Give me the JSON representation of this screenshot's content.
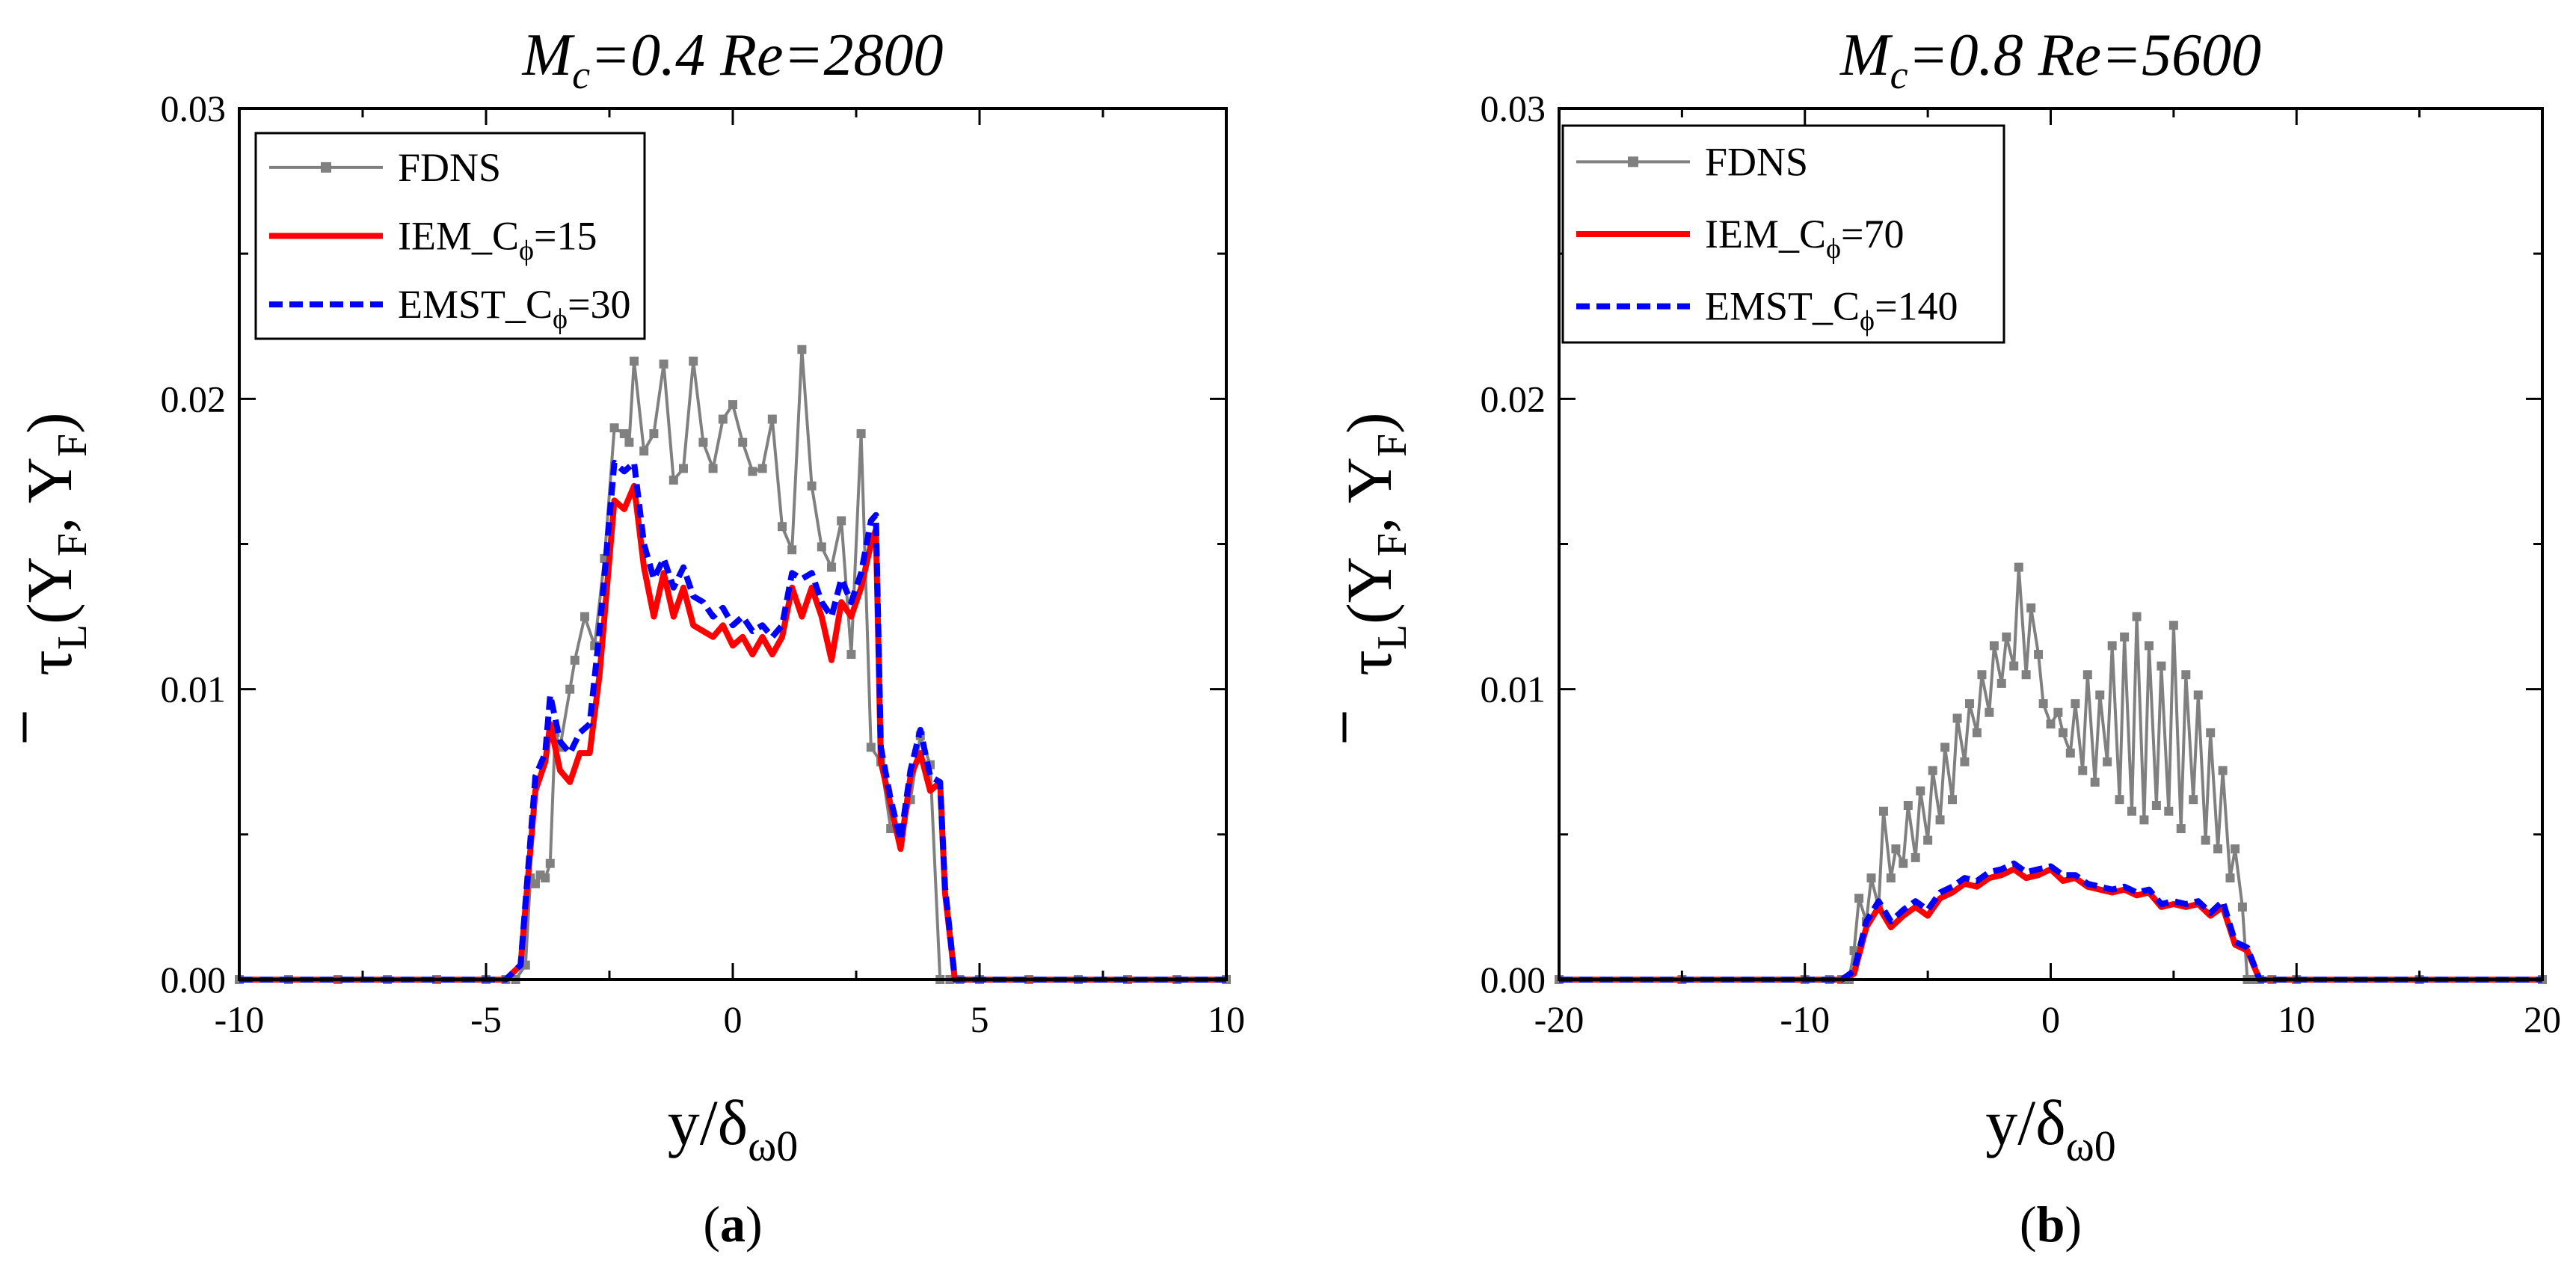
{
  "colors": {
    "FDNS": "#808080",
    "IEM": "#ff0000",
    "EMST": "#0000ff",
    "axis": "#000000",
    "background": "#ffffff"
  },
  "chart_data": [
    {
      "type": "line",
      "panel_label_parts": [
        "(",
        "a",
        ")"
      ],
      "title_parts": {
        "M": "M",
        "sub": "c",
        "mid": "=0.4  ",
        "Re": "Re",
        "rest": "=2800"
      },
      "xlabel_parts": {
        "pre": "y/",
        "delta": "δ",
        "sub": "ω0"
      },
      "ylabel_parts": {
        "tau": "τ",
        "tau_sub": "L",
        "open": "(Y",
        "sub1": "F",
        "comma": ", Y",
        "sub2": "F",
        "close": ")"
      },
      "xlim": [
        -10,
        10
      ],
      "ylim": [
        0,
        0.03
      ],
      "xticks": [
        -10,
        -5,
        0,
        5,
        10
      ],
      "xtick_labels": [
        "-10",
        "-5",
        "0",
        "5",
        "10"
      ],
      "yticks": [
        0,
        0.01,
        0.02,
        0.03
      ],
      "ytick_labels": [
        "0.00",
        "0.01",
        "0.02",
        "0.03"
      ],
      "legend": {
        "position": "top-left",
        "entries": [
          {
            "key": "FDNS",
            "parts": [
              "FDNS"
            ]
          },
          {
            "key": "IEM",
            "parts": [
              "IEM_C",
              "ϕ",
              "=15"
            ]
          },
          {
            "key": "EMST",
            "parts": [
              "EMST_C",
              "ϕ",
              "=30"
            ]
          }
        ]
      },
      "series": [
        {
          "name": "FDNS",
          "style": "solid-square-markers",
          "x": [
            -10.0,
            -9.0,
            -8.0,
            -7.0,
            -6.0,
            -5.0,
            -4.6,
            -4.4,
            -4.2,
            -4.1,
            -4.0,
            -3.9,
            -3.8,
            -3.7,
            -3.6,
            -3.5,
            -3.3,
            -3.2,
            -3.0,
            -2.8,
            -2.6,
            -2.4,
            -2.2,
            -2.1,
            -2.0,
            -1.8,
            -1.6,
            -1.4,
            -1.2,
            -1.0,
            -0.8,
            -0.6,
            -0.4,
            -0.2,
            0.0,
            0.2,
            0.4,
            0.6,
            0.8,
            1.0,
            1.2,
            1.4,
            1.6,
            1.8,
            2.0,
            2.2,
            2.4,
            2.6,
            2.8,
            3.0,
            3.2,
            3.4,
            3.6,
            3.8,
            4.0,
            4.2,
            4.4,
            4.6,
            5.0,
            6.0,
            7.0,
            8.0,
            9.0,
            10.0
          ],
          "values": [
            0.0,
            0.0,
            0.0,
            0.0,
            0.0,
            0.0,
            0.0,
            0.0,
            0.0005,
            0.0035,
            0.0033,
            0.0036,
            0.0035,
            0.004,
            0.0085,
            0.008,
            0.01,
            0.011,
            0.0125,
            0.0115,
            0.0145,
            0.019,
            0.0188,
            0.0185,
            0.0213,
            0.0182,
            0.0188,
            0.0212,
            0.0172,
            0.0176,
            0.0213,
            0.0185,
            0.0176,
            0.0193,
            0.0198,
            0.0185,
            0.0175,
            0.0176,
            0.0193,
            0.0156,
            0.0148,
            0.0217,
            0.017,
            0.0149,
            0.0142,
            0.0158,
            0.0112,
            0.0188,
            0.008,
            0.0075,
            0.0052,
            0.0049,
            0.0062,
            0.0084,
            0.0074,
            0.0,
            0.0,
            0.0,
            0.0,
            0.0,
            0.0,
            0.0,
            0.0,
            0.0
          ]
        },
        {
          "name": "IEM",
          "style": "solid",
          "x": [
            -10.0,
            -8.0,
            -6.0,
            -4.6,
            -4.3,
            -4.0,
            -3.8,
            -3.7,
            -3.5,
            -3.3,
            -3.1,
            -2.9,
            -2.7,
            -2.4,
            -2.2,
            -2.0,
            -1.8,
            -1.6,
            -1.4,
            -1.2,
            -1.0,
            -0.8,
            -0.6,
            -0.4,
            -0.2,
            0.0,
            0.2,
            0.4,
            0.6,
            0.8,
            1.0,
            1.2,
            1.4,
            1.6,
            1.8,
            2.0,
            2.2,
            2.4,
            2.6,
            2.8,
            2.9,
            3.0,
            3.2,
            3.4,
            3.6,
            3.8,
            4.0,
            4.2,
            4.3,
            4.5,
            5.0,
            6.0,
            8.0,
            10.0
          ],
          "values": [
            0.0,
            0.0,
            0.0,
            0.0,
            0.0005,
            0.0065,
            0.0075,
            0.0088,
            0.0072,
            0.0068,
            0.0078,
            0.0078,
            0.0105,
            0.0165,
            0.0162,
            0.017,
            0.0142,
            0.0125,
            0.014,
            0.0125,
            0.0135,
            0.0122,
            0.012,
            0.0118,
            0.0122,
            0.0115,
            0.0118,
            0.0112,
            0.0118,
            0.0112,
            0.0118,
            0.0135,
            0.0125,
            0.0135,
            0.0125,
            0.011,
            0.013,
            0.0125,
            0.0135,
            0.015,
            0.0155,
            0.0075,
            0.006,
            0.0045,
            0.007,
            0.0078,
            0.0065,
            0.0068,
            0.003,
            0.0,
            0.0,
            0.0,
            0.0,
            0.0
          ]
        },
        {
          "name": "EMST",
          "style": "dashed",
          "x": [
            -10.0,
            -8.0,
            -6.0,
            -4.6,
            -4.3,
            -4.0,
            -3.8,
            -3.7,
            -3.5,
            -3.3,
            -3.1,
            -2.9,
            -2.7,
            -2.4,
            -2.2,
            -2.0,
            -1.8,
            -1.6,
            -1.4,
            -1.2,
            -1.0,
            -0.8,
            -0.6,
            -0.4,
            -0.2,
            0.0,
            0.2,
            0.4,
            0.6,
            0.8,
            1.0,
            1.2,
            1.4,
            1.6,
            1.8,
            2.0,
            2.2,
            2.4,
            2.6,
            2.8,
            2.9,
            3.0,
            3.2,
            3.4,
            3.6,
            3.8,
            4.0,
            4.2,
            4.3,
            4.5,
            5.0,
            6.0,
            8.0,
            10.0
          ],
          "values": [
            0.0,
            0.0,
            0.0,
            0.0,
            0.0005,
            0.007,
            0.0078,
            0.0098,
            0.0082,
            0.0078,
            0.0085,
            0.0088,
            0.012,
            0.0178,
            0.0175,
            0.0178,
            0.015,
            0.0138,
            0.0145,
            0.0135,
            0.0142,
            0.0132,
            0.013,
            0.0125,
            0.0128,
            0.0122,
            0.0125,
            0.012,
            0.0122,
            0.0118,
            0.0122,
            0.014,
            0.0138,
            0.014,
            0.013,
            0.0125,
            0.0138,
            0.013,
            0.014,
            0.0158,
            0.016,
            0.008,
            0.0062,
            0.0048,
            0.0072,
            0.0086,
            0.007,
            0.0068,
            0.0032,
            0.0,
            0.0,
            0.0,
            0.0,
            0.0
          ]
        }
      ]
    },
    {
      "type": "line",
      "panel_label_parts": [
        "(",
        "b",
        ")"
      ],
      "title_parts": {
        "M": "M",
        "sub": "c",
        "mid": "=0.8  ",
        "Re": "Re",
        "rest": "=5600"
      },
      "xlabel_parts": {
        "pre": "y/",
        "delta": "δ",
        "sub": "ω0"
      },
      "ylabel_parts": {
        "tau": "τ",
        "tau_sub": "L",
        "open": "(Y",
        "sub1": "F",
        "comma": ", Y",
        "sub2": "F",
        "close": ")"
      },
      "xlim": [
        -20,
        20
      ],
      "ylim": [
        0,
        0.03
      ],
      "xticks": [
        -20,
        -10,
        0,
        10,
        20
      ],
      "xtick_labels": [
        "-20",
        "-10",
        "0",
        "10",
        "20"
      ],
      "yticks": [
        0,
        0.01,
        0.02,
        0.03
      ],
      "ytick_labels": [
        "0.00",
        "0.01",
        "0.02",
        "0.03"
      ],
      "legend": {
        "position": "top-left",
        "entries": [
          {
            "key": "FDNS",
            "parts": [
              "FDNS"
            ]
          },
          {
            "key": "IEM",
            "parts": [
              "IEM_C",
              "ϕ",
              "=70"
            ]
          },
          {
            "key": "EMST",
            "parts": [
              "EMST_C",
              "ϕ",
              "=140"
            ]
          }
        ]
      },
      "series": [
        {
          "name": "FDNS",
          "style": "solid-square-markers",
          "x": [
            -20.0,
            -15.0,
            -10.0,
            -9.0,
            -8.5,
            -8.2,
            -8.0,
            -7.8,
            -7.5,
            -7.3,
            -7.0,
            -6.8,
            -6.5,
            -6.3,
            -6.0,
            -5.8,
            -5.5,
            -5.3,
            -5.0,
            -4.8,
            -4.5,
            -4.3,
            -4.0,
            -3.8,
            -3.5,
            -3.3,
            -3.0,
            -2.8,
            -2.5,
            -2.3,
            -2.0,
            -1.8,
            -1.5,
            -1.3,
            -1.0,
            -0.8,
            -0.5,
            -0.3,
            0.0,
            0.3,
            0.5,
            0.8,
            1.0,
            1.3,
            1.5,
            1.8,
            2.0,
            2.3,
            2.5,
            2.8,
            3.0,
            3.3,
            3.5,
            3.8,
            4.0,
            4.3,
            4.5,
            4.8,
            5.0,
            5.3,
            5.5,
            5.8,
            6.0,
            6.3,
            6.5,
            6.8,
            7.0,
            7.3,
            7.5,
            7.8,
            8.0,
            8.2,
            8.5,
            9.0,
            10.0,
            15.0,
            20.0
          ],
          "values": [
            0.0,
            0.0,
            0.0,
            0.0,
            0.0,
            0.0,
            0.001,
            0.0028,
            0.002,
            0.0035,
            0.0025,
            0.0058,
            0.0035,
            0.0045,
            0.004,
            0.006,
            0.0042,
            0.0065,
            0.0048,
            0.0072,
            0.0055,
            0.008,
            0.0062,
            0.009,
            0.0075,
            0.0095,
            0.0085,
            0.0105,
            0.0092,
            0.0115,
            0.0102,
            0.0118,
            0.0108,
            0.0142,
            0.0105,
            0.0128,
            0.0112,
            0.0095,
            0.0088,
            0.0092,
            0.0085,
            0.0078,
            0.0095,
            0.0072,
            0.0105,
            0.0068,
            0.0098,
            0.0075,
            0.0115,
            0.0062,
            0.0118,
            0.0058,
            0.0125,
            0.0055,
            0.0115,
            0.006,
            0.0108,
            0.0058,
            0.0122,
            0.0052,
            0.0105,
            0.0062,
            0.0098,
            0.0048,
            0.0085,
            0.0045,
            0.0072,
            0.0035,
            0.0045,
            0.0025,
            0.0,
            0.0,
            0.0,
            0.0,
            0.0,
            0.0,
            0.0
          ]
        },
        {
          "name": "IEM",
          "style": "solid",
          "x": [
            -20.0,
            -15.0,
            -10.0,
            -8.5,
            -8.0,
            -7.5,
            -7.0,
            -6.5,
            -6.0,
            -5.5,
            -5.0,
            -4.5,
            -4.0,
            -3.5,
            -3.0,
            -2.5,
            -2.0,
            -1.5,
            -1.0,
            -0.5,
            0.0,
            0.5,
            1.0,
            1.5,
            2.0,
            2.5,
            3.0,
            3.5,
            4.0,
            4.5,
            5.0,
            5.5,
            6.0,
            6.5,
            7.0,
            7.5,
            8.0,
            8.5,
            10.0,
            15.0,
            20.0
          ],
          "values": [
            0.0,
            0.0,
            0.0,
            0.0,
            0.0002,
            0.0018,
            0.0025,
            0.0018,
            0.0022,
            0.0025,
            0.0022,
            0.0028,
            0.003,
            0.0033,
            0.0032,
            0.0035,
            0.0036,
            0.0038,
            0.0035,
            0.0036,
            0.0038,
            0.0034,
            0.0035,
            0.0032,
            0.0031,
            0.003,
            0.0031,
            0.0029,
            0.003,
            0.0025,
            0.0026,
            0.0025,
            0.0026,
            0.0022,
            0.0025,
            0.0012,
            0.001,
            0.0,
            0.0,
            0.0,
            0.0
          ]
        },
        {
          "name": "EMST",
          "style": "dashed",
          "x": [
            -20.0,
            -15.0,
            -10.0,
            -8.5,
            -8.0,
            -7.5,
            -7.0,
            -6.5,
            -6.0,
            -5.5,
            -5.0,
            -4.5,
            -4.0,
            -3.5,
            -3.0,
            -2.5,
            -2.0,
            -1.5,
            -1.0,
            -0.5,
            0.0,
            0.5,
            1.0,
            1.5,
            2.0,
            2.5,
            3.0,
            3.5,
            4.0,
            4.5,
            5.0,
            5.5,
            6.0,
            6.5,
            7.0,
            7.5,
            8.0,
            8.5,
            10.0,
            15.0,
            20.0
          ],
          "values": [
            0.0,
            0.0,
            0.0,
            0.0,
            0.0003,
            0.002,
            0.0027,
            0.002,
            0.0024,
            0.0027,
            0.0024,
            0.003,
            0.0032,
            0.0035,
            0.0034,
            0.0037,
            0.0038,
            0.004,
            0.0037,
            0.0038,
            0.0039,
            0.0036,
            0.0036,
            0.0033,
            0.0032,
            0.0031,
            0.0032,
            0.003,
            0.0031,
            0.0026,
            0.0027,
            0.0026,
            0.0027,
            0.0023,
            0.0027,
            0.0013,
            0.0011,
            0.0,
            0.0,
            0.0,
            0.0
          ]
        }
      ]
    }
  ]
}
